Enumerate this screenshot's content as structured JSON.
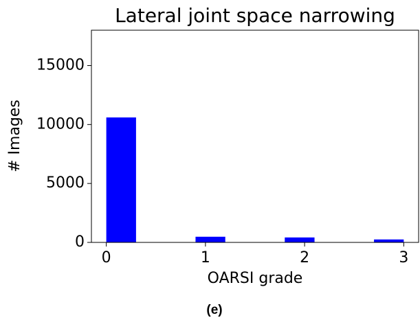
{
  "chart_data": {
    "type": "histogram",
    "title": "Lateral joint space narrowing",
    "xlabel": "OARSI grade",
    "ylabel": "# Images",
    "caption": "(e)",
    "bins": [
      0,
      0.3,
      0.6,
      0.9,
      1.2,
      1.5,
      1.8,
      2.1,
      2.4,
      2.7,
      3.0
    ],
    "values": [
      10600,
      0,
      0,
      480,
      0,
      0,
      420,
      0,
      0,
      250
    ],
    "color": "#0000ff",
    "xlim": [
      -0.15,
      3.15
    ],
    "xticks": [
      0,
      1,
      2,
      3
    ],
    "ylim": [
      0,
      18000
    ],
    "yticks": [
      0,
      5000,
      10000,
      15000
    ],
    "grid": false
  }
}
